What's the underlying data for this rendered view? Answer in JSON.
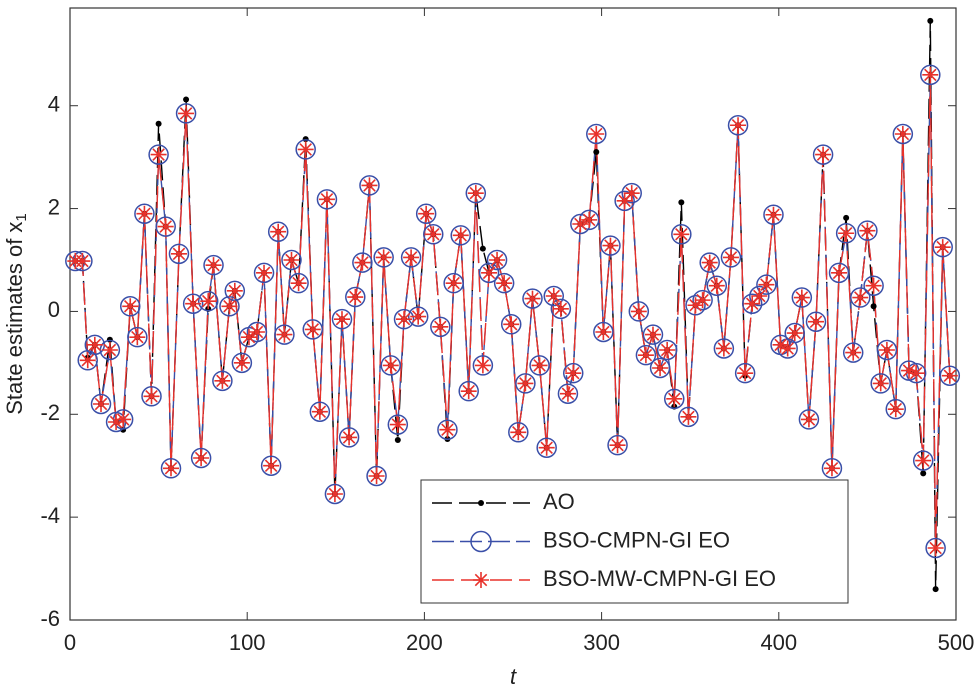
{
  "chart_data": {
    "type": "line",
    "xlabel": "t",
    "ylabel": "State estimates of x",
    "ylabel_subscript": "1",
    "xlim": [
      0,
      500
    ],
    "xticks": [
      0,
      100,
      200,
      300,
      400,
      500
    ],
    "ylim": [
      -6,
      5.9
    ],
    "yticks": [
      -6,
      -4,
      -2,
      0,
      2,
      4
    ],
    "legend": "lower right",
    "x": [
      3,
      7,
      10,
      14,
      17.5,
      22.5,
      26,
      30,
      34,
      38,
      42,
      46,
      50,
      54,
      57,
      61.5,
      65.5,
      69.5,
      74,
      78,
      81,
      86,
      90,
      93,
      97,
      101,
      105.5,
      109.5,
      113.5,
      117.5,
      121,
      125,
      129,
      133,
      137,
      141,
      145,
      149.5,
      153.5,
      157.5,
      161,
      165,
      169,
      173,
      177,
      181,
      185,
      188.5,
      192.5,
      196.5,
      201,
      205,
      209,
      213,
      216.5,
      220.5,
      225,
      229,
      233,
      236.5,
      241,
      245,
      249,
      253,
      257,
      261,
      265,
      269,
      273,
      277,
      281,
      284,
      288,
      293,
      297,
      301,
      305,
      309,
      313,
      317,
      321,
      325,
      329,
      333,
      337,
      341,
      345,
      349,
      353,
      357,
      361,
      365,
      369,
      373,
      377,
      381,
      385,
      389,
      393,
      397,
      401,
      405,
      409,
      413,
      417,
      421,
      425,
      430,
      434,
      438,
      442,
      446,
      450,
      453.5,
      457.5,
      461,
      466,
      470,
      473.5,
      477.5,
      481.5,
      485.5,
      488.5,
      492.5,
      496.5
    ],
    "series": [
      {
        "name": "AO",
        "color": "#000000",
        "marker": "dot",
        "values": [
          0.98,
          0.98,
          -0.9,
          -0.65,
          -1.8,
          -0.55,
          -2.15,
          -2.3,
          0.1,
          -0.5,
          1.9,
          -1.65,
          3.65,
          1.65,
          -3.05,
          1.12,
          4.12,
          0.15,
          -2.85,
          0.05,
          0.9,
          -1.35,
          0.1,
          0.4,
          -1.0,
          -0.5,
          -0.4,
          0.75,
          -3.0,
          1.55,
          -0.45,
          1.0,
          0.55,
          3.35,
          -0.35,
          -1.95,
          2.18,
          -3.55,
          -0.15,
          -2.45,
          0.28,
          0.95,
          2.45,
          -3.2,
          1.05,
          -1.05,
          -2.5,
          -0.15,
          1.05,
          -0.1,
          1.9,
          1.5,
          -0.3,
          -2.48,
          0.55,
          1.48,
          -1.55,
          2.3,
          1.22,
          0.75,
          1.0,
          0.55,
          -0.25,
          -2.35,
          -1.4,
          0.25,
          -1.05,
          -2.65,
          0.3,
          0.05,
          -1.6,
          -1.2,
          1.7,
          1.78,
          3.1,
          -0.4,
          1.28,
          -2.6,
          2.15,
          2.3,
          0.0,
          -0.85,
          -0.45,
          -1.1,
          -0.75,
          -1.85,
          2.12,
          -2.05,
          0.12,
          0.22,
          0.95,
          0.5,
          -0.72,
          1.05,
          3.62,
          -1.25,
          0.15,
          0.3,
          0.52,
          1.88,
          -0.65,
          -0.72,
          -0.42,
          0.27,
          -2.1,
          -0.2,
          3.05,
          -3.05,
          0.75,
          1.82,
          -0.8,
          0.27,
          1.57,
          0.1,
          -1.4,
          -0.75,
          -1.9,
          3.45,
          -1.15,
          -1.2,
          -3.15,
          5.65,
          -5.4,
          1.25,
          -1.25
        ]
      },
      {
        "name": "BSO-CMPN-GI EO",
        "color": "#3a4fa8",
        "marker": "circle",
        "values": [
          0.98,
          0.98,
          -0.95,
          -0.65,
          -1.8,
          -0.75,
          -2.15,
          -2.1,
          0.1,
          -0.5,
          1.9,
          -1.65,
          3.05,
          1.65,
          -3.05,
          1.12,
          3.85,
          0.15,
          -2.85,
          0.2,
          0.9,
          -1.35,
          0.1,
          0.4,
          -1.0,
          -0.5,
          -0.4,
          0.75,
          -3.0,
          1.55,
          -0.45,
          1.0,
          0.55,
          3.15,
          -0.35,
          -1.95,
          2.18,
          -3.55,
          -0.15,
          -2.45,
          0.28,
          0.95,
          2.45,
          -3.2,
          1.05,
          -1.05,
          -2.2,
          -0.15,
          1.05,
          -0.1,
          1.9,
          1.5,
          -0.3,
          -2.3,
          0.55,
          1.48,
          -1.55,
          2.3,
          -1.05,
          0.75,
          1.0,
          0.55,
          -0.25,
          -2.35,
          -1.4,
          0.25,
          -1.05,
          -2.65,
          0.3,
          0.05,
          -1.6,
          -1.2,
          1.7,
          1.78,
          3.45,
          -0.4,
          1.28,
          -2.6,
          2.15,
          2.3,
          0.0,
          -0.85,
          -0.45,
          -1.1,
          -0.75,
          -1.7,
          1.5,
          -2.05,
          0.12,
          0.22,
          0.95,
          0.5,
          -0.72,
          1.05,
          3.62,
          -1.2,
          0.15,
          0.3,
          0.52,
          1.88,
          -0.65,
          -0.72,
          -0.42,
          0.27,
          -2.1,
          -0.2,
          3.05,
          -3.05,
          0.75,
          1.52,
          -0.8,
          0.27,
          1.57,
          0.5,
          -1.4,
          -0.75,
          -1.9,
          3.45,
          -1.15,
          -1.2,
          -2.9,
          4.6,
          -4.6,
          1.25,
          -1.25
        ]
      },
      {
        "name": "BSO-MW-CMPN-GI EO",
        "color": "#e8322b",
        "marker": "star",
        "values": [
          0.98,
          0.98,
          -0.95,
          -0.65,
          -1.8,
          -0.75,
          -2.15,
          -2.1,
          0.1,
          -0.5,
          1.9,
          -1.65,
          3.05,
          1.65,
          -3.05,
          1.12,
          3.85,
          0.15,
          -2.85,
          0.2,
          0.9,
          -1.35,
          0.1,
          0.4,
          -1.0,
          -0.5,
          -0.4,
          0.75,
          -3.0,
          1.55,
          -0.45,
          1.0,
          0.55,
          3.15,
          -0.35,
          -1.95,
          2.18,
          -3.55,
          -0.15,
          -2.45,
          0.28,
          0.95,
          2.45,
          -3.2,
          1.05,
          -1.05,
          -2.2,
          -0.15,
          1.05,
          -0.1,
          1.9,
          1.5,
          -0.3,
          -2.3,
          0.55,
          1.48,
          -1.55,
          2.3,
          -1.05,
          0.75,
          1.0,
          0.55,
          -0.25,
          -2.35,
          -1.4,
          0.25,
          -1.05,
          -2.65,
          0.3,
          0.05,
          -1.6,
          -1.2,
          1.7,
          1.78,
          3.45,
          -0.4,
          1.28,
          -2.6,
          2.15,
          2.3,
          0.0,
          -0.85,
          -0.45,
          -1.1,
          -0.75,
          -1.7,
          1.5,
          -2.05,
          0.12,
          0.22,
          0.95,
          0.5,
          -0.72,
          1.05,
          3.62,
          -1.2,
          0.15,
          0.3,
          0.52,
          1.88,
          -0.65,
          -0.72,
          -0.42,
          0.27,
          -2.1,
          -0.2,
          3.05,
          -3.05,
          0.75,
          1.52,
          -0.8,
          0.27,
          1.57,
          0.5,
          -1.4,
          -0.75,
          -1.9,
          3.45,
          -1.15,
          -1.2,
          -2.9,
          4.6,
          -4.6,
          1.25,
          -1.25
        ]
      }
    ]
  }
}
